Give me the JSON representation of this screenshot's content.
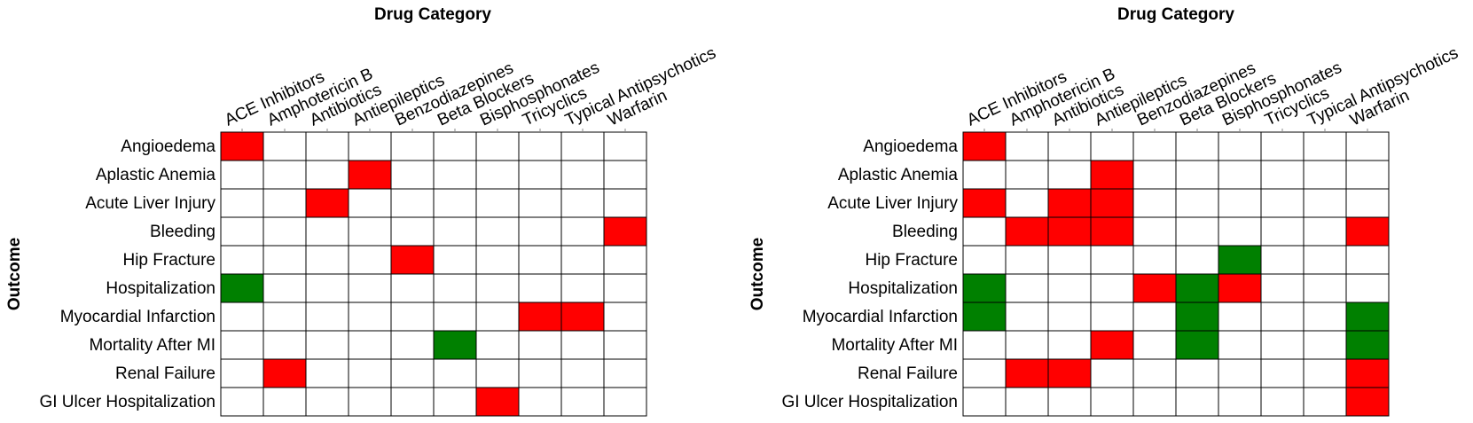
{
  "colors": {
    "risk": "#ff0000",
    "protective": "#008000",
    "none": "#ffffff",
    "grid": "#000000"
  },
  "chart_data": [
    {
      "type": "heatmap",
      "title": "Drug Category",
      "xlabel": "Drug Category",
      "ylabel": "Outcome",
      "categories": [
        "ACE Inhibitors",
        "Amphotericin B",
        "Antibiotics",
        "Antiepileptics",
        "Benzodiazepines",
        "Beta Blockers",
        "Bisphosphonates",
        "Tricyclics",
        "Typical Antipsychotics",
        "Warfarin"
      ],
      "rows": [
        "Angioedema",
        "Aplastic Anemia",
        "Acute Liver Injury",
        "Bleeding",
        "Hip Fracture",
        "Hospitalization",
        "Myocardial Infarction",
        "Mortality After MI",
        "Renal Failure",
        "GI Ulcer Hospitalization"
      ],
      "values": [
        [
          1,
          0,
          0,
          0,
          0,
          0,
          0,
          0,
          0,
          0
        ],
        [
          0,
          0,
          0,
          1,
          0,
          0,
          0,
          0,
          0,
          0
        ],
        [
          0,
          0,
          1,
          0,
          0,
          0,
          0,
          0,
          0,
          0
        ],
        [
          0,
          0,
          0,
          0,
          0,
          0,
          0,
          0,
          0,
          1
        ],
        [
          0,
          0,
          0,
          0,
          1,
          0,
          0,
          0,
          0,
          0
        ],
        [
          -1,
          0,
          0,
          0,
          0,
          0,
          0,
          0,
          0,
          0
        ],
        [
          0,
          0,
          0,
          0,
          0,
          0,
          0,
          1,
          1,
          0
        ],
        [
          0,
          0,
          0,
          0,
          0,
          -1,
          0,
          0,
          0,
          0
        ],
        [
          0,
          1,
          0,
          0,
          0,
          0,
          0,
          0,
          0,
          0
        ],
        [
          0,
          0,
          0,
          0,
          0,
          0,
          1,
          0,
          0,
          0
        ]
      ]
    },
    {
      "type": "heatmap",
      "title": "Drug Category",
      "xlabel": "Drug Category",
      "ylabel": "Outcome",
      "categories": [
        "ACE Inhibitors",
        "Amphotericin B",
        "Antibiotics",
        "Antiepileptics",
        "Benzodiazepines",
        "Beta Blockers",
        "Bisphosphonates",
        "Tricyclics",
        "Typical Antipsychotics",
        "Warfarin"
      ],
      "rows": [
        "Angioedema",
        "Aplastic Anemia",
        "Acute Liver Injury",
        "Bleeding",
        "Hip Fracture",
        "Hospitalization",
        "Myocardial Infarction",
        "Mortality After MI",
        "Renal Failure",
        "GI Ulcer Hospitalization"
      ],
      "values": [
        [
          1,
          0,
          0,
          0,
          0,
          0,
          0,
          0,
          0,
          0
        ],
        [
          0,
          0,
          0,
          1,
          0,
          0,
          0,
          0,
          0,
          0
        ],
        [
          1,
          0,
          1,
          1,
          0,
          0,
          0,
          0,
          0,
          0
        ],
        [
          0,
          1,
          1,
          1,
          0,
          0,
          0,
          0,
          0,
          1
        ],
        [
          0,
          0,
          0,
          0,
          0,
          0,
          -1,
          0,
          0,
          0
        ],
        [
          -1,
          0,
          0,
          0,
          1,
          -1,
          1,
          0,
          0,
          0
        ],
        [
          -1,
          0,
          0,
          0,
          0,
          -1,
          0,
          0,
          0,
          -1
        ],
        [
          0,
          0,
          0,
          1,
          0,
          -1,
          0,
          0,
          0,
          -1
        ],
        [
          0,
          1,
          1,
          0,
          0,
          0,
          0,
          0,
          0,
          1
        ],
        [
          0,
          0,
          0,
          0,
          0,
          0,
          0,
          0,
          0,
          1
        ]
      ]
    }
  ]
}
